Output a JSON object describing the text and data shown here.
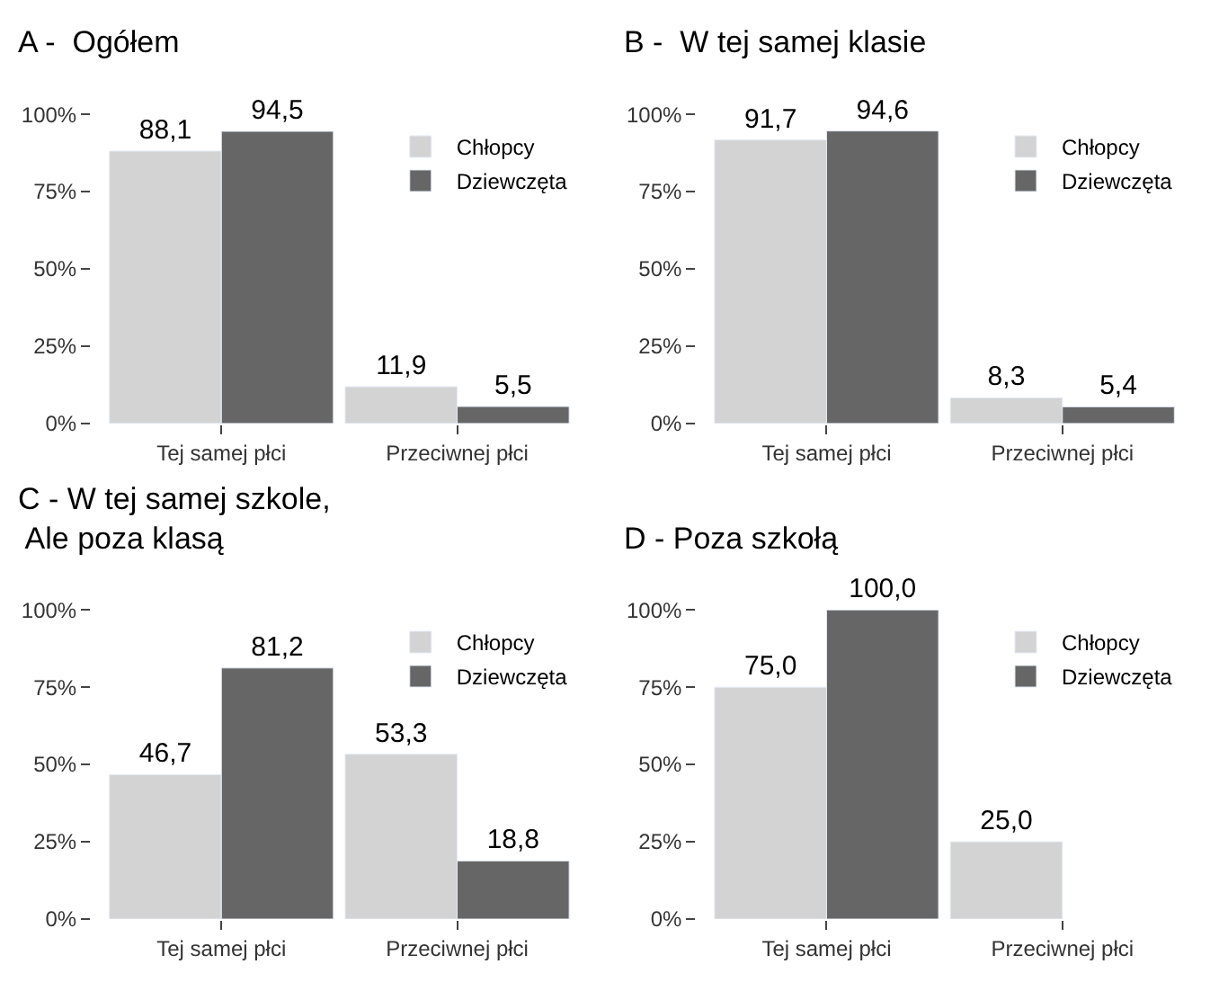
{
  "chart_data": [
    {
      "type": "bar",
      "title": "A -  Ogółem",
      "categories": [
        "Tej samej płci",
        "Przeciwnej płci"
      ],
      "series": [
        {
          "name": "Chłopcy",
          "color": "#d3d3d3",
          "values": [
            88.1,
            11.9
          ],
          "value_labels": [
            "88,1",
            "11,9"
          ]
        },
        {
          "name": "Dziewczęta",
          "color": "#666666",
          "values": [
            94.5,
            5.5
          ],
          "value_labels": [
            "94,5",
            "5,5"
          ]
        }
      ],
      "ylim": [
        0,
        100
      ],
      "yticks": [
        {
          "value": 0,
          "label": "0%"
        },
        {
          "value": 25,
          "label": "25%"
        },
        {
          "value": 50,
          "label": "50%"
        },
        {
          "value": 75,
          "label": "75%"
        },
        {
          "value": 100,
          "label": "100%"
        }
      ],
      "legend": "top right"
    },
    {
      "type": "bar",
      "title": "B -  W tej samej klasie",
      "categories": [
        "Tej samej płci",
        "Przeciwnej płci"
      ],
      "series": [
        {
          "name": "Chłopcy",
          "color": "#d3d3d3",
          "values": [
            91.7,
            8.3
          ],
          "value_labels": [
            "91,7",
            "8,3"
          ]
        },
        {
          "name": "Dziewczęta",
          "color": "#666666",
          "values": [
            94.6,
            5.4
          ],
          "value_labels": [
            "94,6",
            "5,4"
          ]
        }
      ],
      "ylim": [
        0,
        100
      ],
      "yticks": [
        {
          "value": 0,
          "label": "0%"
        },
        {
          "value": 25,
          "label": "25%"
        },
        {
          "value": 50,
          "label": "50%"
        },
        {
          "value": 75,
          "label": "75%"
        },
        {
          "value": 100,
          "label": "100%"
        }
      ],
      "legend": "top right"
    },
    {
      "type": "bar",
      "title": "C - W tej samej szkole,\n Ale poza klasą",
      "categories": [
        "Tej samej płci",
        "Przeciwnej płci"
      ],
      "series": [
        {
          "name": "Chłopcy",
          "color": "#d3d3d3",
          "values": [
            46.7,
            53.3
          ],
          "value_labels": [
            "46,7",
            "53,3"
          ]
        },
        {
          "name": "Dziewczęta",
          "color": "#666666",
          "values": [
            81.2,
            18.8
          ],
          "value_labels": [
            "81,2",
            "18,8"
          ]
        }
      ],
      "ylim": [
        0,
        100
      ],
      "yticks": [
        {
          "value": 0,
          "label": "0%"
        },
        {
          "value": 25,
          "label": "25%"
        },
        {
          "value": 50,
          "label": "50%"
        },
        {
          "value": 75,
          "label": "75%"
        },
        {
          "value": 100,
          "label": "100%"
        }
      ],
      "legend": "top right"
    },
    {
      "type": "bar",
      "title": "D - Poza szkołą",
      "categories": [
        "Tej samej płci",
        "Przeciwnej płci"
      ],
      "series": [
        {
          "name": "Chłopcy",
          "color": "#d3d3d3",
          "values": [
            75.0,
            25.0
          ],
          "value_labels": [
            "75,0",
            "25,0"
          ]
        },
        {
          "name": "Dziewczęta",
          "color": "#666666",
          "values": [
            100.0,
            null
          ],
          "value_labels": [
            "100,0",
            null
          ]
        }
      ],
      "ylim": [
        0,
        100
      ],
      "yticks": [
        {
          "value": 0,
          "label": "0%"
        },
        {
          "value": 25,
          "label": "25%"
        },
        {
          "value": 50,
          "label": "50%"
        },
        {
          "value": 75,
          "label": "75%"
        },
        {
          "value": 100,
          "label": "100%"
        }
      ],
      "legend": "top right"
    }
  ]
}
